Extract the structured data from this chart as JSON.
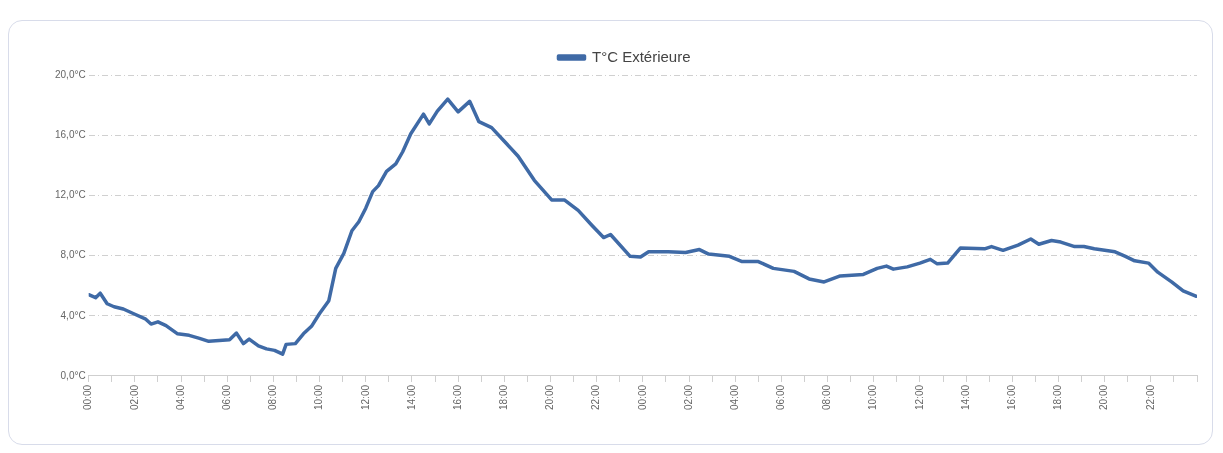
{
  "chart_data": {
    "type": "line",
    "legend": "top",
    "grid": "y",
    "marker": "none",
    "line_style": "solid",
    "xlim": [
      "--01-01T00:00",
      "--01-03T00:00"
    ],
    "ylim": [
      0,
      20
    ],
    "yticks": [
      {
        "value": 0,
        "label": "0,0°C"
      },
      {
        "value": 4,
        "label": "4,0°C"
      },
      {
        "value": 8,
        "label": "8,0°C"
      },
      {
        "value": 12,
        "label": "12,0°C"
      },
      {
        "value": 16,
        "label": "16,0°C"
      },
      {
        "value": 20,
        "label": "20,0°C"
      }
    ],
    "xticks": [
      {
        "value": "--01-01T00:00",
        "label": "00:00"
      },
      {
        "value": "--01-01T01:00",
        "label": null
      },
      {
        "value": "--01-01T02:00",
        "label": "02:00"
      },
      {
        "value": "--01-01T03:00",
        "label": null
      },
      {
        "value": "--01-01T04:00",
        "label": "04:00"
      },
      {
        "value": "--01-01T05:00",
        "label": null
      },
      {
        "value": "--01-01T06:00",
        "label": "06:00"
      },
      {
        "value": "--01-01T07:00",
        "label": null
      },
      {
        "value": "--01-01T08:00",
        "label": "08:00"
      },
      {
        "value": "--01-01T09:00",
        "label": null
      },
      {
        "value": "--01-01T10:00",
        "label": "10:00"
      },
      {
        "value": "--01-01T11:00",
        "label": null
      },
      {
        "value": "--01-01T12:00",
        "label": "12:00"
      },
      {
        "value": "--01-01T13:00",
        "label": null
      },
      {
        "value": "--01-01T14:00",
        "label": "14:00"
      },
      {
        "value": "--01-01T15:00",
        "label": null
      },
      {
        "value": "--01-01T16:00",
        "label": "16:00"
      },
      {
        "value": "--01-01T17:00",
        "label": null
      },
      {
        "value": "--01-01T18:00",
        "label": "18:00"
      },
      {
        "value": "--01-01T19:00",
        "label": null
      },
      {
        "value": "--01-01T20:00",
        "label": "20:00"
      },
      {
        "value": "--01-01T21:00",
        "label": null
      },
      {
        "value": "--01-01T22:00",
        "label": "22:00"
      },
      {
        "value": "--01-01T23:00",
        "label": null
      },
      {
        "value": "--01-02T00:00",
        "label": "00:00"
      },
      {
        "value": "--01-02T01:00",
        "label": null
      },
      {
        "value": "--01-02T02:00",
        "label": "02:00"
      },
      {
        "value": "--01-02T03:00",
        "label": null
      },
      {
        "value": "--01-02T04:00",
        "label": "04:00"
      },
      {
        "value": "--01-02T05:00",
        "label": null
      },
      {
        "value": "--01-02T06:00",
        "label": "06:00"
      },
      {
        "value": "--01-02T07:00",
        "label": null
      },
      {
        "value": "--01-02T08:00",
        "label": "08:00"
      },
      {
        "value": "--01-02T09:00",
        "label": null
      },
      {
        "value": "--01-02T10:00",
        "label": "10:00"
      },
      {
        "value": "--01-02T11:00",
        "label": null
      },
      {
        "value": "--01-02T12:00",
        "label": "12:00"
      },
      {
        "value": "--01-02T13:00",
        "label": null
      },
      {
        "value": "--01-02T14:00",
        "label": "14:00"
      },
      {
        "value": "--01-02T15:00",
        "label": null
      },
      {
        "value": "--01-02T16:00",
        "label": "16:00"
      },
      {
        "value": "--01-02T17:00",
        "label": null
      },
      {
        "value": "--01-02T18:00",
        "label": "18:00"
      },
      {
        "value": "--01-02T19:00",
        "label": null
      },
      {
        "value": "--01-02T20:00",
        "label": "20:00"
      },
      {
        "value": "--01-02T21:00",
        "label": null
      },
      {
        "value": "--01-02T22:00",
        "label": "22:00"
      },
      {
        "value": "--01-02T23:00",
        "label": null
      },
      {
        "value": "--01-03T00:00",
        "label": null
      }
    ],
    "series": [
      {
        "name": "T°C Extérieure",
        "color": "#3f6aa6",
        "x": [
          "--01-01T00:00",
          "--01-01T00:18",
          "--01-01T00:30",
          "--01-01T00:48",
          "--01-01T01:06",
          "--01-01T01:30",
          "--01-01T02:00",
          "--01-01T02:27",
          "--01-01T02:42",
          "--01-01T03:00",
          "--01-01T03:21",
          "--01-01T03:51",
          "--01-01T04:21",
          "--01-01T04:48",
          "--01-01T05:12",
          "--01-01T05:39",
          "--01-01T06:06",
          "--01-01T06:24",
          "--01-01T06:42",
          "--01-01T06:57",
          "--01-01T07:21",
          "--01-01T07:42",
          "--01-01T08:03",
          "--01-01T08:24",
          "--01-01T08:33",
          "--01-01T08:57",
          "--01-01T09:18",
          "--01-01T09:39",
          "--01-01T10:00",
          "--01-01T10:24",
          "--01-01T10:42",
          "--01-01T11:03",
          "--01-01T11:24",
          "--01-01T11:42",
          "--01-01T12:00",
          "--01-01T12:18",
          "--01-01T12:33",
          "--01-01T12:54",
          "--01-01T13:18",
          "--01-01T13:36",
          "--01-01T13:57",
          "--01-01T14:30",
          "--01-01T14:45",
          "--01-01T15:06",
          "--01-01T15:33",
          "--01-01T16:00",
          "--01-01T16:30",
          "--01-01T16:54",
          "--01-01T17:27",
          "--01-01T18:00",
          "--01-01T18:36",
          "--01-01T19:18",
          "--01-01T20:03",
          "--01-01T20:36",
          "--01-01T21:12",
          "--01-01T21:48",
          "--01-01T22:18",
          "--01-01T22:36",
          "--01-01T23:27",
          "--01-01T23:54",
          "--01-02T00:15",
          "--01-02T01:06",
          "--01-02T01:51",
          "--01-02T02:27",
          "--01-02T02:51",
          "--01-02T03:45",
          "--01-02T04:18",
          "--01-02T05:00",
          "--01-02T05:39",
          "--01-02T06:33",
          "--01-02T07:12",
          "--01-02T07:51",
          "--01-02T08:33",
          "--01-02T09:33",
          "--01-02T10:09",
          "--01-02T10:33",
          "--01-02T10:51",
          "--01-02T11:27",
          "--01-02T12:00",
          "--01-02T12:27",
          "--01-02T12:45",
          "--01-02T13:12",
          "--01-02T13:45",
          "--01-02T14:48",
          "--01-02T15:06",
          "--01-02T15:36",
          "--01-02T16:15",
          "--01-02T16:48",
          "--01-02T17:09",
          "--01-02T17:42",
          "--01-02T18:06",
          "--01-02T18:42",
          "--01-02T19:06",
          "--01-02T19:33",
          "--01-02T20:27",
          "--01-02T20:54",
          "--01-02T21:18",
          "--01-02T21:54",
          "--01-02T22:18",
          "--01-02T22:54",
          "--01-02T23:24",
          "--01-02T23:57"
        ],
        "values": [
          5.4,
          5.2,
          5.5,
          4.8,
          4.6,
          4.45,
          4.1,
          3.8,
          3.45,
          3.6,
          3.35,
          2.8,
          2.7,
          2.5,
          2.3,
          2.35,
          2.4,
          2.85,
          2.15,
          2.45,
          2.0,
          1.8,
          1.7,
          1.45,
          2.1,
          2.15,
          2.8,
          3.3,
          4.15,
          5.0,
          7.15,
          8.15,
          9.65,
          10.25,
          11.15,
          12.25,
          12.65,
          13.6,
          14.1,
          14.9,
          16.1,
          17.4,
          16.75,
          17.6,
          18.4,
          17.55,
          18.25,
          16.9,
          16.5,
          15.6,
          14.6,
          13.0,
          11.7,
          11.7,
          11.0,
          10.0,
          9.2,
          9.4,
          7.95,
          7.9,
          8.25,
          8.25,
          8.2,
          8.4,
          8.1,
          7.95,
          7.6,
          7.6,
          7.15,
          6.95,
          6.45,
          6.25,
          6.65,
          6.75,
          7.15,
          7.3,
          7.1,
          7.25,
          7.5,
          7.75,
          7.45,
          7.5,
          8.5,
          8.45,
          8.6,
          8.35,
          8.7,
          9.1,
          8.75,
          9.0,
          8.9,
          8.6,
          8.6,
          8.45,
          8.25,
          7.95,
          7.65,
          7.5,
          6.9,
          6.25,
          5.65,
          5.3
        ]
      }
    ]
  }
}
